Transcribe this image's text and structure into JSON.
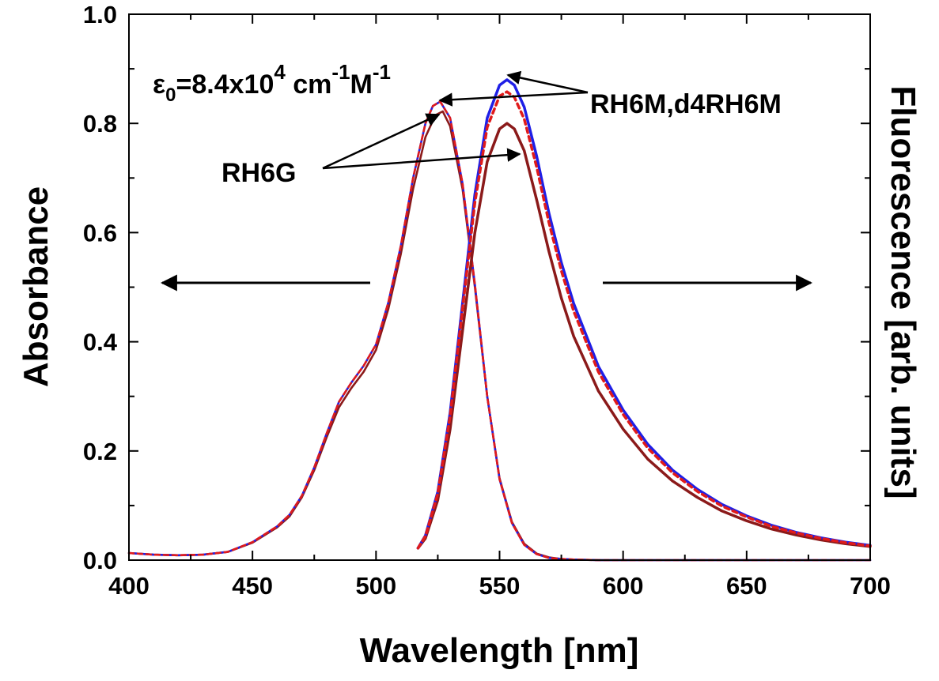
{
  "chart_data": {
    "type": "line",
    "title": "",
    "xlabel": "Wavelength [nm]",
    "ylabel": "Absorbance",
    "y2label": "Fluorescence [arb. units]",
    "xlim": [
      400,
      700
    ],
    "ylim": [
      0,
      1.0
    ],
    "x_ticks": [
      "400",
      "450",
      "500",
      "550",
      "600",
      "650",
      "700"
    ],
    "y_ticks": [
      "0.0",
      "0.2",
      "0.4",
      "0.6",
      "0.8",
      "1.0"
    ],
    "grid": false,
    "colors": {
      "RH6G": "#8b1a1a",
      "RH6M": "#1f1fe6",
      "d4RH6M": "#e01b1b"
    },
    "series": [
      {
        "name": "RH6G",
        "kind": "absorbance",
        "color": "#8b1a1a",
        "x": [
          400,
          410,
          420,
          430,
          440,
          450,
          460,
          465,
          470,
          475,
          480,
          485,
          490,
          495,
          500,
          505,
          510,
          515,
          520,
          524,
          527,
          530,
          535,
          540,
          545,
          550,
          555,
          560,
          565,
          570,
          575,
          580,
          590,
          600,
          650,
          700
        ],
        "y": [
          0.013,
          0.01,
          0.009,
          0.01,
          0.015,
          0.032,
          0.06,
          0.08,
          0.115,
          0.165,
          0.225,
          0.28,
          0.315,
          0.345,
          0.385,
          0.46,
          0.56,
          0.68,
          0.775,
          0.815,
          0.822,
          0.795,
          0.68,
          0.5,
          0.3,
          0.15,
          0.07,
          0.03,
          0.012,
          0.005,
          0.002,
          0.001,
          0.0,
          0.0,
          0.0,
          0.0
        ]
      },
      {
        "name": "RH6M",
        "kind": "absorbance",
        "color": "#1f1fe6",
        "x": [
          400,
          410,
          420,
          430,
          440,
          450,
          460,
          465,
          470,
          475,
          480,
          485,
          490,
          495,
          500,
          505,
          510,
          515,
          520,
          523,
          526,
          530,
          535,
          540,
          545,
          550,
          555,
          560,
          565,
          570,
          575,
          580,
          590,
          600,
          650,
          700
        ],
        "y": [
          0.013,
          0.01,
          0.009,
          0.01,
          0.015,
          0.033,
          0.062,
          0.083,
          0.118,
          0.17,
          0.232,
          0.29,
          0.325,
          0.356,
          0.395,
          0.472,
          0.575,
          0.7,
          0.8,
          0.832,
          0.84,
          0.81,
          0.69,
          0.505,
          0.3,
          0.148,
          0.068,
          0.028,
          0.011,
          0.004,
          0.002,
          0.001,
          0.0,
          0.0,
          0.0,
          0.0
        ]
      },
      {
        "name": "d4RH6M",
        "kind": "absorbance",
        "color": "#e01b1b",
        "x": [
          400,
          410,
          420,
          430,
          440,
          450,
          460,
          465,
          470,
          475,
          480,
          485,
          490,
          495,
          500,
          505,
          510,
          515,
          520,
          523,
          526,
          530,
          535,
          540,
          545,
          550,
          555,
          560,
          565,
          570,
          575,
          580,
          590,
          600,
          650,
          700
        ],
        "y": [
          0.013,
          0.01,
          0.009,
          0.01,
          0.015,
          0.033,
          0.062,
          0.083,
          0.118,
          0.17,
          0.232,
          0.29,
          0.325,
          0.356,
          0.395,
          0.472,
          0.575,
          0.7,
          0.8,
          0.832,
          0.84,
          0.81,
          0.69,
          0.505,
          0.3,
          0.148,
          0.068,
          0.028,
          0.011,
          0.004,
          0.002,
          0.001,
          0.0,
          0.0,
          0.0,
          0.0
        ]
      },
      {
        "name": "RH6G",
        "kind": "fluorescence",
        "color": "#8b1a1a",
        "x": [
          517,
          520,
          525,
          530,
          535,
          540,
          545,
          550,
          553,
          556,
          560,
          565,
          570,
          575,
          580,
          590,
          600,
          610,
          620,
          630,
          640,
          650,
          660,
          670,
          680,
          690,
          700
        ],
        "y": [
          0.022,
          0.04,
          0.11,
          0.24,
          0.42,
          0.6,
          0.73,
          0.79,
          0.8,
          0.79,
          0.75,
          0.66,
          0.565,
          0.48,
          0.41,
          0.31,
          0.24,
          0.185,
          0.145,
          0.115,
          0.09,
          0.072,
          0.057,
          0.046,
          0.037,
          0.03,
          0.025
        ]
      },
      {
        "name": "RH6M",
        "kind": "fluorescence",
        "color": "#1f1fe6",
        "x": [
          517,
          520,
          525,
          530,
          535,
          540,
          545,
          550,
          553,
          556,
          560,
          565,
          570,
          575,
          580,
          590,
          600,
          610,
          620,
          630,
          640,
          650,
          660,
          670,
          680,
          690,
          700
        ],
        "y": [
          0.022,
          0.045,
          0.125,
          0.27,
          0.47,
          0.67,
          0.81,
          0.87,
          0.88,
          0.87,
          0.83,
          0.74,
          0.635,
          0.545,
          0.47,
          0.355,
          0.275,
          0.212,
          0.165,
          0.13,
          0.102,
          0.081,
          0.064,
          0.051,
          0.041,
          0.033,
          0.027
        ]
      },
      {
        "name": "d4RH6M",
        "kind": "fluorescence",
        "color": "#e01b1b",
        "x": [
          517,
          520,
          525,
          530,
          535,
          540,
          545,
          550,
          553,
          556,
          560,
          565,
          570,
          575,
          580,
          590,
          600,
          610,
          620,
          630,
          640,
          650,
          660,
          670,
          680,
          690,
          700
        ],
        "y": [
          0.022,
          0.044,
          0.122,
          0.264,
          0.46,
          0.655,
          0.793,
          0.85,
          0.858,
          0.848,
          0.808,
          0.72,
          0.618,
          0.53,
          0.456,
          0.345,
          0.267,
          0.205,
          0.16,
          0.126,
          0.099,
          0.079,
          0.062,
          0.05,
          0.04,
          0.032,
          0.026
        ]
      }
    ],
    "annotations": {
      "epsilon": {
        "sym": "ε",
        "sub": "0",
        "mid": "=8.4x10",
        "sup1": "4",
        "unit1": " cm",
        "sup2": "-1",
        "unit2": "M",
        "sup3": "-1"
      },
      "label_rh6m": "RH6M,d4RH6M",
      "label_rh6g": "RH6G"
    }
  }
}
